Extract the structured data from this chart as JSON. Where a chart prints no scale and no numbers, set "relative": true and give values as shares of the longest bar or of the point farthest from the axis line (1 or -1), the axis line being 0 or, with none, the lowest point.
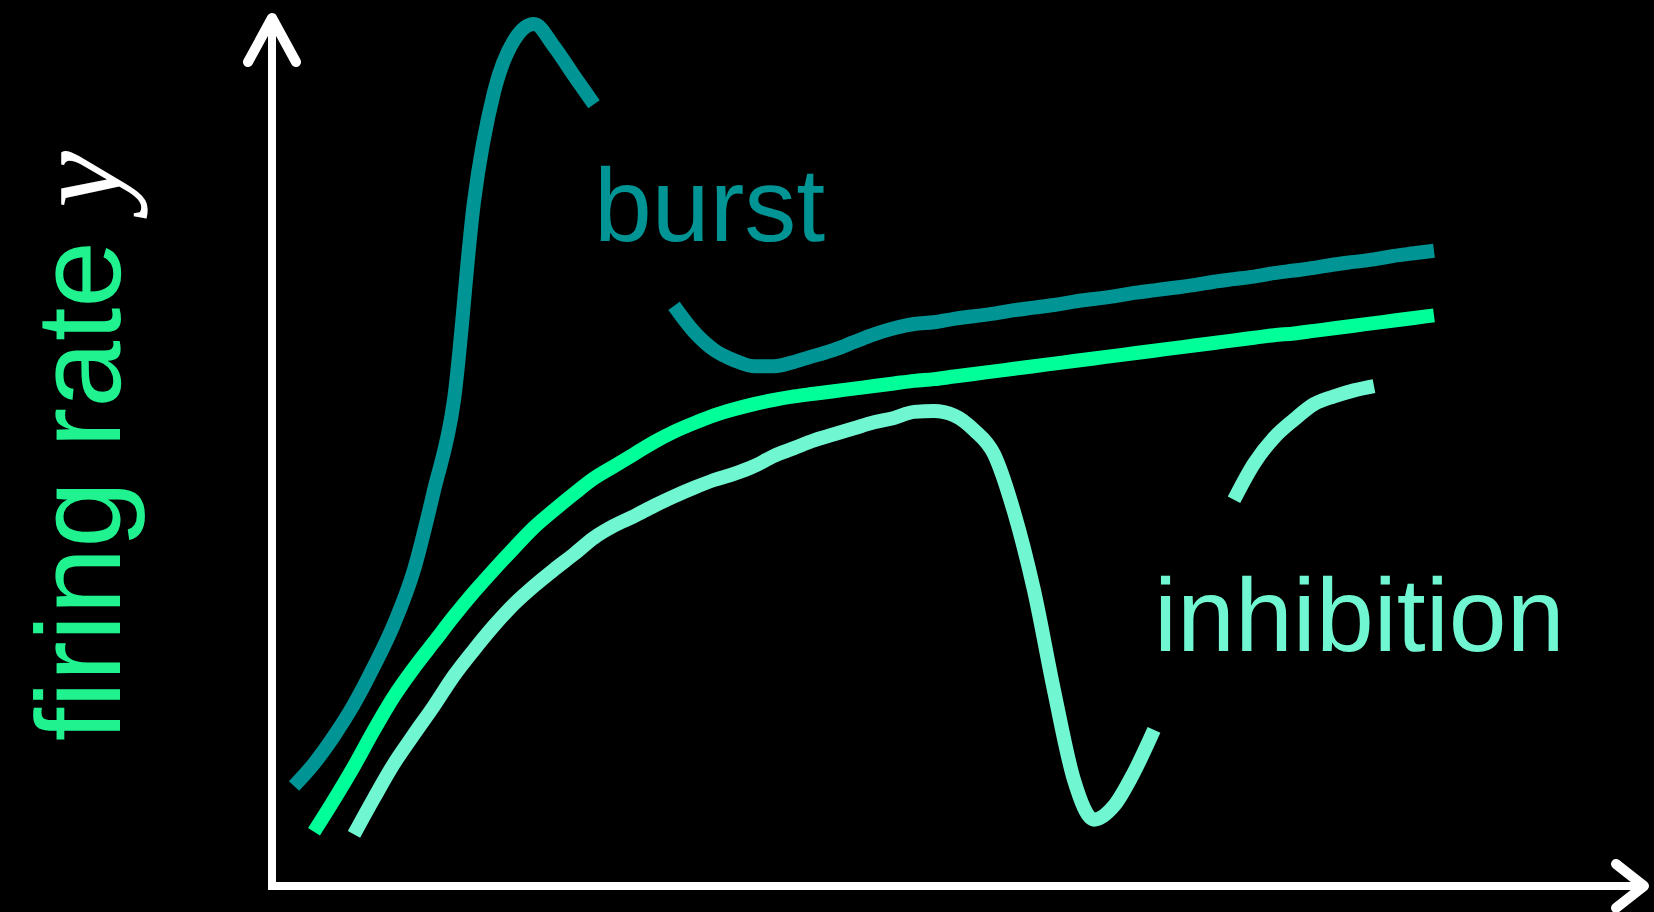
{
  "chart_data": {
    "type": "line",
    "ylabel": "firing rate y",
    "relative": true,
    "categories": [
      null,
      null,
      null,
      null,
      null,
      null,
      null,
      null,
      null,
      null,
      null,
      null,
      null,
      null,
      null,
      null,
      null,
      null,
      null,
      null,
      null,
      null,
      null,
      null,
      null,
      null,
      null,
      null,
      null,
      null,
      null,
      null,
      null,
      null,
      null,
      null,
      null,
      null,
      null,
      null,
      null,
      null,
      null,
      null,
      null,
      null,
      null,
      null,
      null,
      null,
      null,
      null,
      null,
      null,
      null,
      null,
      null,
      null
    ],
    "series": [
      {
        "name": "burst",
        "color": "#009494",
        "values": [
          0.116,
          0.142,
          0.174,
          0.211,
          0.255,
          0.304,
          0.367,
          0.459,
          0.564,
          0.794,
          0.921,
          0.981,
          1,
          0.974,
          0.94,
          0.907,
          null,
          null,
          null,
          0.673,
          0.643,
          0.622,
          0.61,
          0.603,
          0.603,
          0.608,
          0.615,
          0.622,
          0.631,
          0.64,
          0.647,
          0.652,
          0.654,
          0.658,
          0.661,
          0.664,
          0.668,
          0.671,
          0.674,
          0.678,
          0.681,
          0.684,
          0.688,
          0.691,
          0.694,
          0.697,
          0.701,
          0.704,
          0.707,
          0.711,
          0.714,
          0.717,
          0.721,
          0.724,
          0.727,
          0.731,
          0.734,
          0.737
        ]
      },
      {
        "color": "#00ff99",
        "values": [
          null,
          0.063,
          0.1,
          0.139,
          0.181,
          0.22,
          0.253,
          0.283,
          0.313,
          0.341,
          0.367,
          0.392,
          0.416,
          0.436,
          0.455,
          0.473,
          0.487,
          0.501,
          0.515,
          0.527,
          0.537,
          0.546,
          0.553,
          0.559,
          0.564,
          0.568,
          0.571,
          0.574,
          0.577,
          0.58,
          0.583,
          0.586,
          0.588,
          0.591,
          0.594,
          0.597,
          0.6,
          0.603,
          0.606,
          0.609,
          0.612,
          0.615,
          0.618,
          0.621,
          0.624,
          0.627,
          0.63,
          0.633,
          0.636,
          0.639,
          0.641,
          0.644,
          0.647,
          0.65,
          0.653,
          0.656,
          0.659,
          0.662
        ]
      },
      {
        "name": "inhibition",
        "color": "#70f7d2",
        "values": [
          null,
          null,
          null,
          0.06,
          0.102,
          0.142,
          0.176,
          0.209,
          0.244,
          0.274,
          0.302,
          0.327,
          0.348,
          0.367,
          0.385,
          0.404,
          0.418,
          0.429,
          0.441,
          0.452,
          0.462,
          0.471,
          0.478,
          0.487,
          0.499,
          0.508,
          0.517,
          0.524,
          0.531,
          0.538,
          0.543,
          0.55,
          0.551,
          0.546,
          0.529,
          0.501,
          0.434,
          0.343,
          0.227,
          0.123,
          0.077,
          0.093,
          0.132,
          0.181,
          null,
          null,
          null,
          0.448,
          0.49,
          0.52,
          0.541,
          0.559,
          0.568,
          0.575,
          0.58,
          null,
          null,
          null
        ]
      }
    ]
  }
}
